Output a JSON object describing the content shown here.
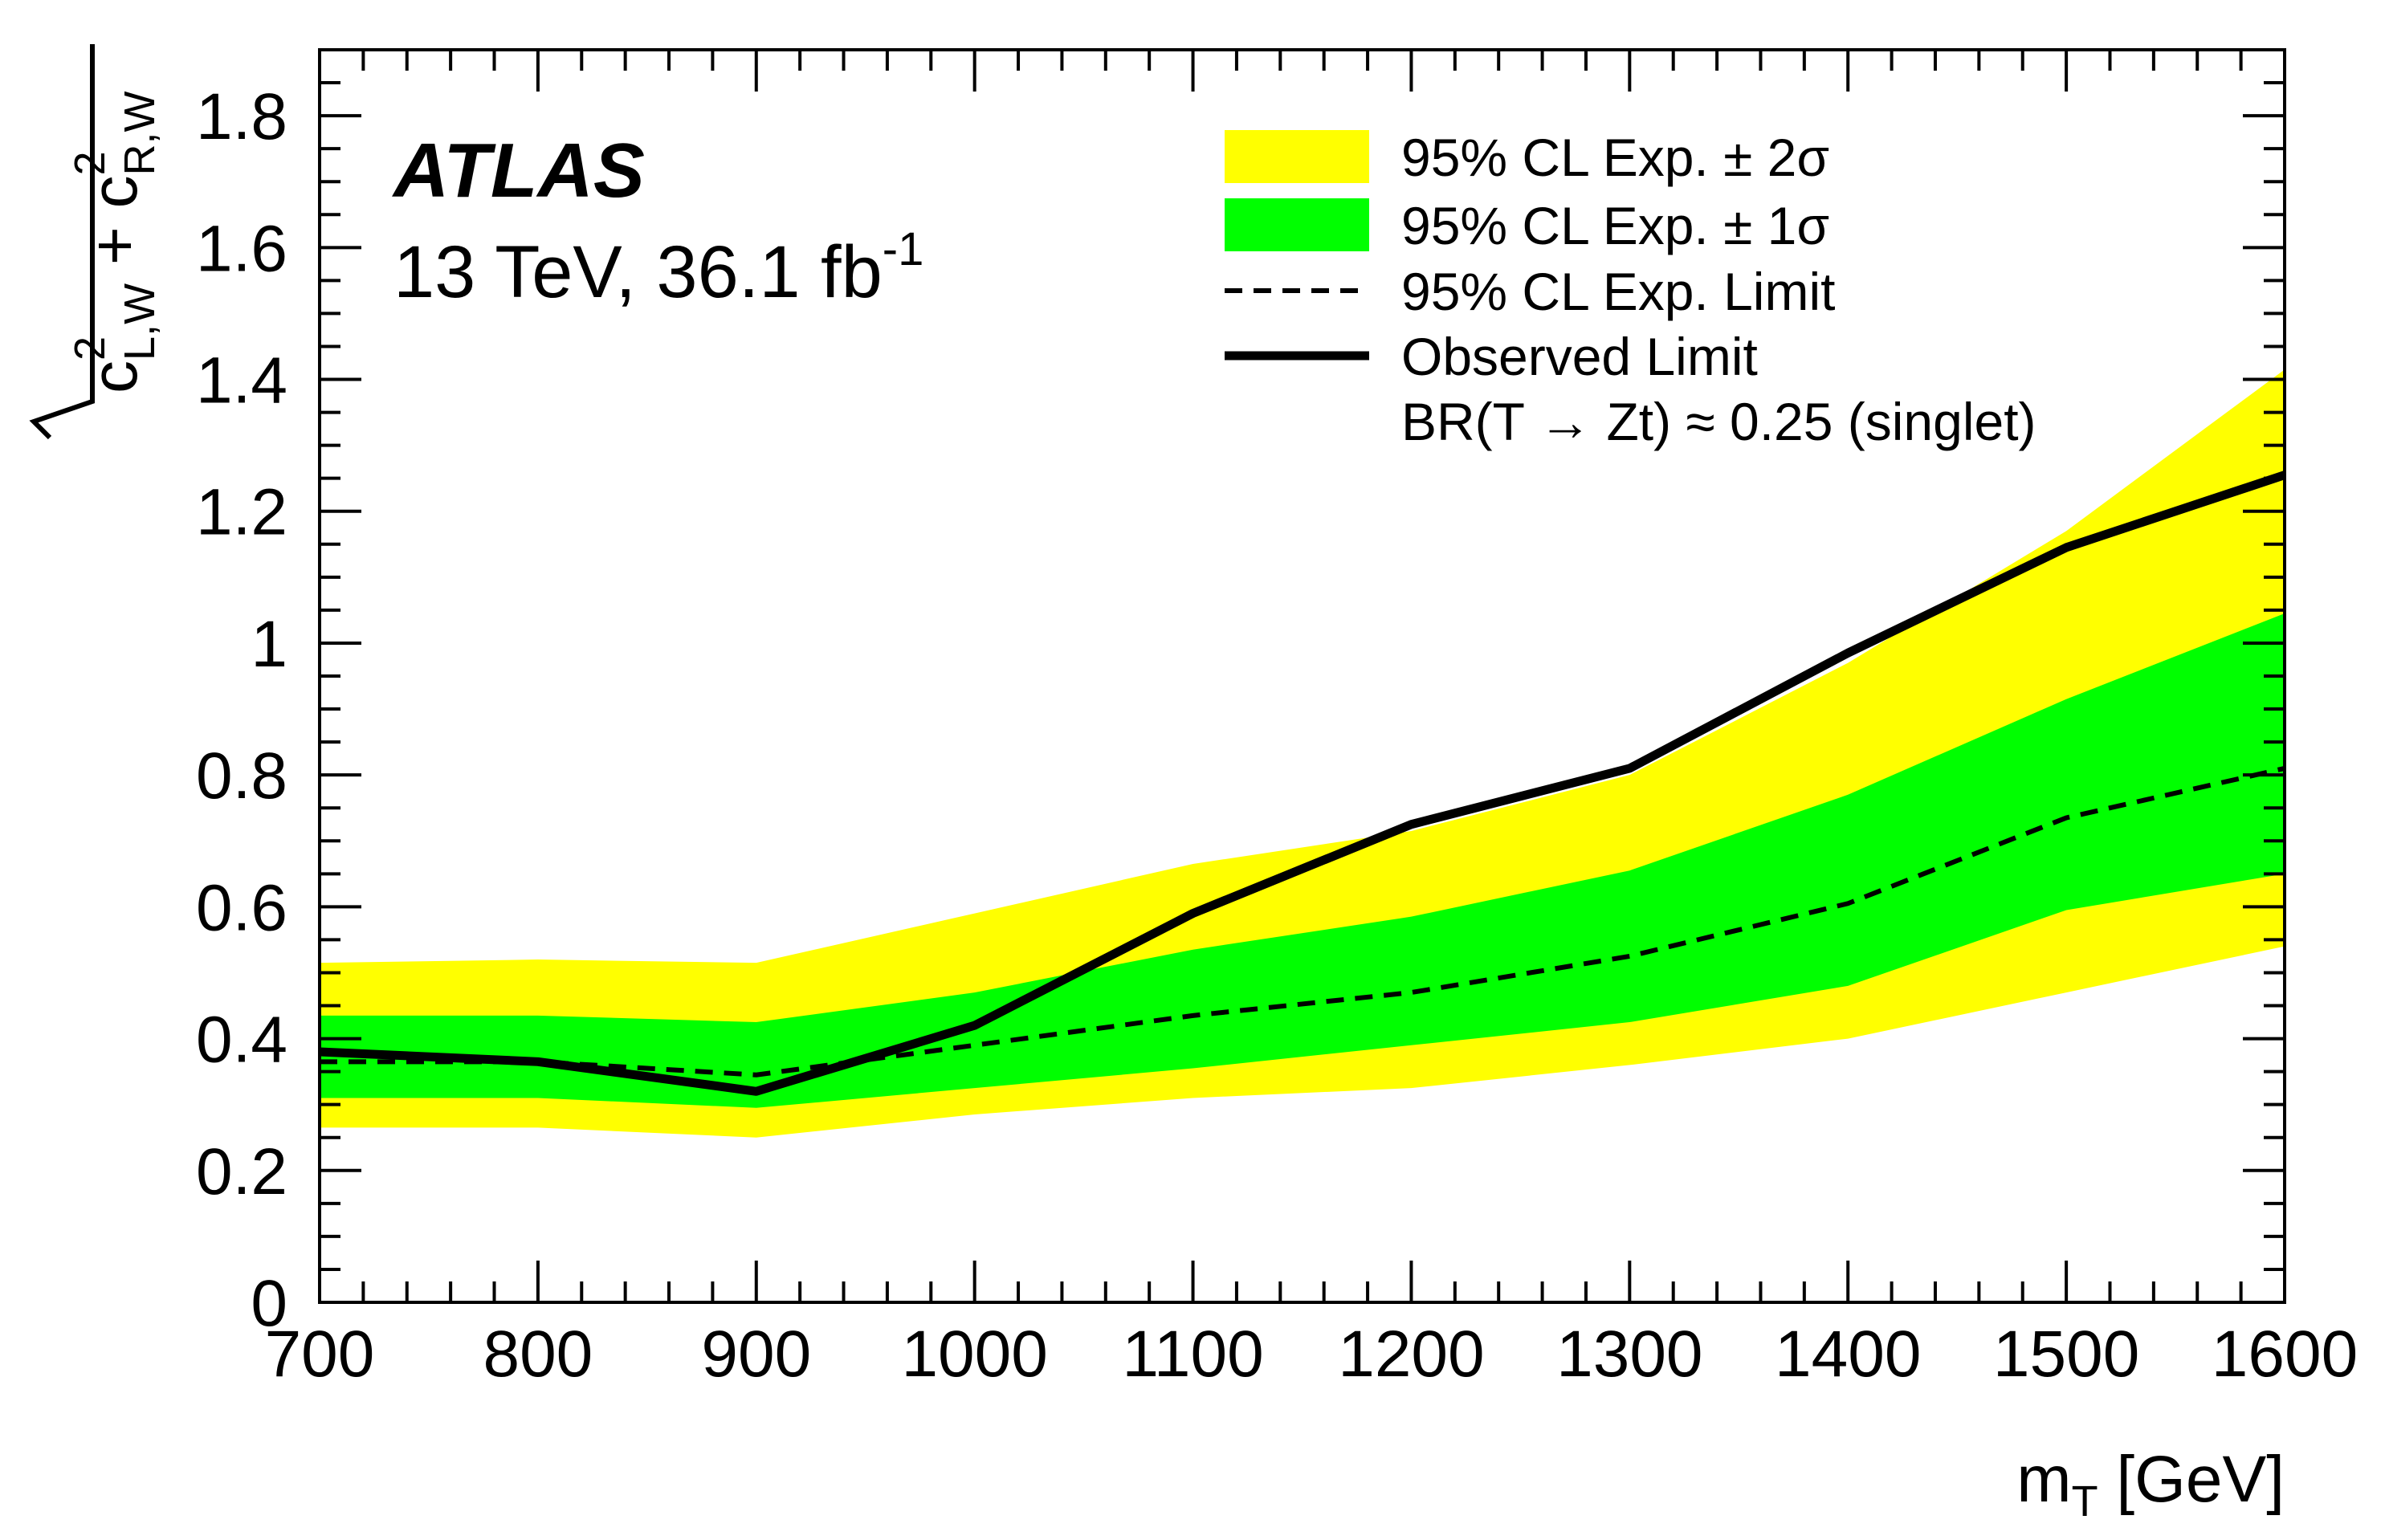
{
  "chart_data": {
    "type": "line",
    "experiment_label": "ATLAS",
    "energy_label": "13 TeV, 36.1 fb",
    "luminosity_superscript": "-1",
    "x": [
      700,
      800,
      900,
      1000,
      1100,
      1200,
      1300,
      1400,
      1500,
      1600
    ],
    "xlim": [
      700,
      1600
    ],
    "ylim": [
      0,
      1.9
    ],
    "x_ticks": [
      "700",
      "800",
      "900",
      "1000",
      "1100",
      "1200",
      "1300",
      "1400",
      "1500",
      "1600"
    ],
    "y_ticks": [
      "0",
      "0.2",
      "0.4",
      "0.6",
      "0.8",
      "1",
      "1.2",
      "1.4",
      "1.6",
      "1.8"
    ],
    "xlabel": {
      "main": "m",
      "sub": "T",
      "unit": " [GeV]"
    },
    "ylabel": {
      "c1": "c",
      "sup1": "2",
      "sub1": "L,W",
      "plus": " + ",
      "c2": "c",
      "sup2": "2",
      "sub2": "R,W"
    },
    "series": [
      {
        "name": "95% CL Exp. ± 2σ",
        "kind": "band",
        "color": "#ffff00",
        "lower": [
          0.265,
          0.265,
          0.25,
          0.285,
          0.31,
          0.325,
          0.36,
          0.4,
          0.47,
          0.54
        ],
        "upper": [
          0.515,
          0.52,
          0.515,
          0.59,
          0.665,
          0.715,
          0.8,
          0.97,
          1.17,
          1.415
        ]
      },
      {
        "name": "95% CL Exp. ± 1σ",
        "kind": "band",
        "color": "#00ff00",
        "lower": [
          0.31,
          0.31,
          0.295,
          0.325,
          0.355,
          0.39,
          0.425,
          0.48,
          0.595,
          0.65
        ],
        "upper": [
          0.435,
          0.435,
          0.425,
          0.47,
          0.535,
          0.585,
          0.655,
          0.77,
          0.915,
          1.045
        ]
      },
      {
        "name": "95% CL Exp. Limit",
        "kind": "dashed",
        "color": "#000000",
        "values": [
          0.365,
          0.365,
          0.345,
          0.39,
          0.435,
          0.47,
          0.525,
          0.605,
          0.735,
          0.81
        ]
      },
      {
        "name": "Observed Limit",
        "kind": "solid",
        "color": "#000000",
        "values": [
          0.38,
          0.365,
          0.32,
          0.42,
          0.59,
          0.725,
          0.81,
          0.985,
          1.145,
          1.255
        ]
      }
    ],
    "legend": {
      "placement": "top-right",
      "entries": [
        {
          "label": "95% CL Exp. ± 2σ",
          "symbol": "band",
          "color": "#ffff00"
        },
        {
          "label": "95% CL Exp. ± 1σ",
          "symbol": "band",
          "color": "#00ff00"
        },
        {
          "label": "95% CL Exp. Limit",
          "symbol": "dashed",
          "color": "#000000"
        },
        {
          "label": "Observed Limit",
          "symbol": "solid",
          "color": "#000000"
        }
      ],
      "note": "BR(T → Zt) ≈ 0.25 (singlet)"
    },
    "grid": false
  }
}
